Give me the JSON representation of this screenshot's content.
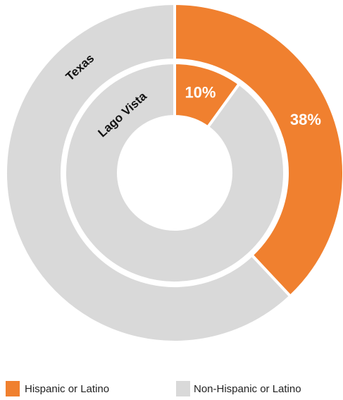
{
  "chart_data": {
    "type": "donut",
    "categories": [
      "Hispanic or Latino",
      "Non-Hispanic or Latino"
    ],
    "colors": [
      "#f0802f",
      "#d9d9d9"
    ],
    "series": [
      {
        "name": "Texas",
        "values": [
          38,
          62
        ],
        "value_labels": [
          "38%",
          null
        ]
      },
      {
        "name": "Lago Vista",
        "values": [
          10,
          90
        ],
        "value_labels": [
          "10%",
          null
        ]
      }
    ]
  }
}
